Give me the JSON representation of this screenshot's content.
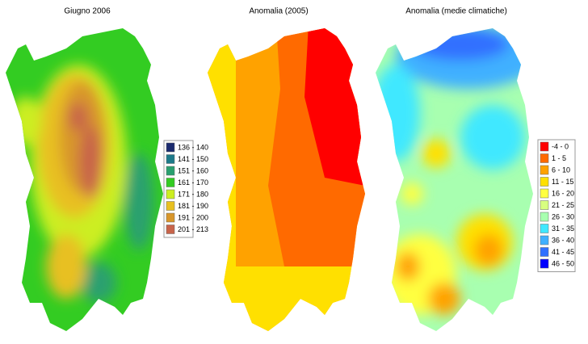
{
  "maps": [
    {
      "title": "Giugno 2006",
      "legend": [
        {
          "label": "136 - 140",
          "color": "#1a2a6e"
        },
        {
          "label": "141 - 150",
          "color": "#1d7a8a"
        },
        {
          "label": "151 - 160",
          "color": "#2aa070"
        },
        {
          "label": "161 - 170",
          "color": "#33cc22"
        },
        {
          "label": "171 - 180",
          "color": "#ccee22"
        },
        {
          "label": "181 - 190",
          "color": "#e8c020"
        },
        {
          "label": "191 - 200",
          "color": "#d8962a"
        },
        {
          "label": "201 - 213",
          "color": "#c8644a"
        }
      ]
    },
    {
      "title": "Anomalia (2005)"
    },
    {
      "title": "Anomalia (medie climatiche)",
      "legend": [
        {
          "label": "-4 - 0",
          "color": "#ff0000"
        },
        {
          "label": "1 - 5",
          "color": "#ff6a00"
        },
        {
          "label": "6 - 10",
          "color": "#ffa200"
        },
        {
          "label": "11 - 15",
          "color": "#ffe000"
        },
        {
          "label": "16 - 20",
          "color": "#ffff40"
        },
        {
          "label": "21 - 25",
          "color": "#d8ff80"
        },
        {
          "label": "26 - 30",
          "color": "#a8ffb0"
        },
        {
          "label": "31 - 35",
          "color": "#40e8ff"
        },
        {
          "label": "36 - 40",
          "color": "#40b0ff"
        },
        {
          "label": "41 - 45",
          "color": "#3070ff"
        },
        {
          "label": "46 - 50",
          "color": "#0000ff"
        }
      ]
    }
  ]
}
